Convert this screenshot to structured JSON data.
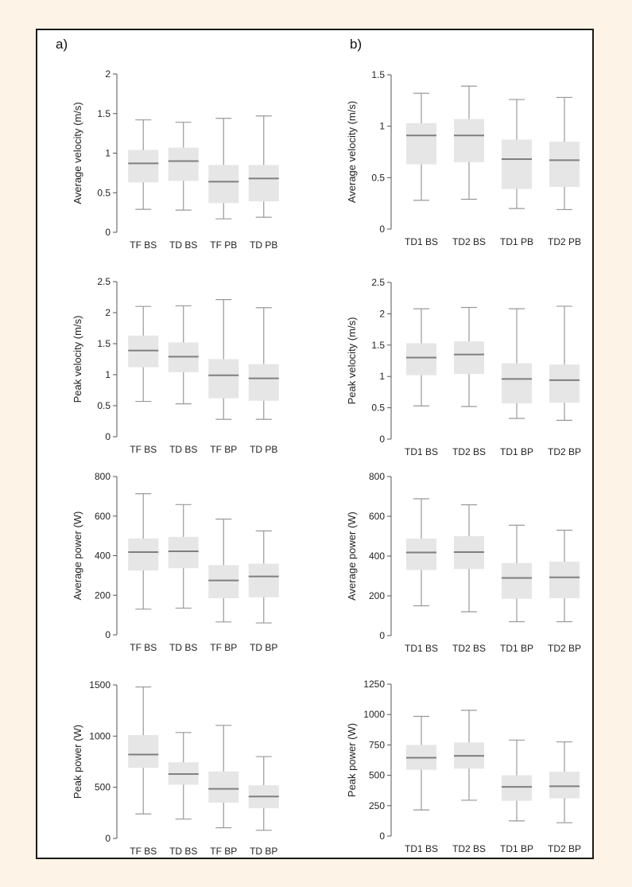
{
  "panel_labels": {
    "a": "a)",
    "b": "b)"
  },
  "colors": {
    "box": "#e6e6e6",
    "median": "#7f7f7f",
    "whisker": "#999999",
    "axis": "#555555",
    "page_bg": "#fdf3e6",
    "frame": "#1a1a1a"
  },
  "chart_data": [
    {
      "type": "box",
      "panel": "a",
      "row": 1,
      "title": "",
      "xlabel": "",
      "ylabel": "Average velocity (m/s)",
      "ylim": [
        0,
        2
      ],
      "yticks": [
        "0",
        "0.5",
        "1",
        "1.5",
        "2"
      ],
      "yticks_values": [
        0,
        0.5,
        1,
        1.5,
        2
      ],
      "categories": [
        "TF BS",
        "TD BS",
        "TF PB",
        "TD PB"
      ],
      "boxes": [
        {
          "min": 0.29,
          "q1": 0.63,
          "median": 0.87,
          "q3": 1.04,
          "max": 1.42
        },
        {
          "min": 0.28,
          "q1": 0.65,
          "median": 0.9,
          "q3": 1.07,
          "max": 1.39
        },
        {
          "min": 0.17,
          "q1": 0.37,
          "median": 0.64,
          "q3": 0.85,
          "max": 1.44
        },
        {
          "min": 0.19,
          "q1": 0.39,
          "median": 0.68,
          "q3": 0.85,
          "max": 1.47
        }
      ]
    },
    {
      "type": "box",
      "panel": "b",
      "row": 1,
      "title": "",
      "xlabel": "",
      "ylabel": "Average velocity (m/s)",
      "ylim": [
        0,
        1.5
      ],
      "yticks": [
        "0",
        "0.5",
        "1",
        "1.5"
      ],
      "yticks_values": [
        0,
        0.5,
        1,
        1.5
      ],
      "categories": [
        "TD1 BS",
        "TD2 BS",
        "TD1 PB",
        "TD2 PB"
      ],
      "boxes": [
        {
          "min": 0.28,
          "q1": 0.63,
          "median": 0.91,
          "q3": 1.03,
          "max": 1.32
        },
        {
          "min": 0.29,
          "q1": 0.65,
          "median": 0.91,
          "q3": 1.07,
          "max": 1.39
        },
        {
          "min": 0.2,
          "q1": 0.39,
          "median": 0.68,
          "q3": 0.87,
          "max": 1.26
        },
        {
          "min": 0.19,
          "q1": 0.41,
          "median": 0.67,
          "q3": 0.85,
          "max": 1.28
        }
      ]
    },
    {
      "type": "box",
      "panel": "a",
      "row": 2,
      "title": "",
      "xlabel": "",
      "ylabel": "Peak velocity (m/s)",
      "ylim": [
        0,
        2.5
      ],
      "yticks": [
        "0",
        "0.5",
        "1",
        "1.5",
        "2",
        "2.5"
      ],
      "yticks_values": [
        0,
        0.5,
        1,
        1.5,
        2,
        2.5
      ],
      "categories": [
        "TF BS",
        "TD BS",
        "TF BP",
        "TD PB"
      ],
      "boxes": [
        {
          "min": 0.57,
          "q1": 1.12,
          "median": 1.39,
          "q3": 1.63,
          "max": 2.1
        },
        {
          "min": 0.53,
          "q1": 1.04,
          "median": 1.29,
          "q3": 1.52,
          "max": 2.11
        },
        {
          "min": 0.28,
          "q1": 0.62,
          "median": 0.99,
          "q3": 1.25,
          "max": 2.21
        },
        {
          "min": 0.28,
          "q1": 0.58,
          "median": 0.94,
          "q3": 1.17,
          "max": 2.08
        }
      ]
    },
    {
      "type": "box",
      "panel": "b",
      "row": 2,
      "title": "",
      "xlabel": "",
      "ylabel": "Peak velocity (m/s)",
      "ylim": [
        0,
        2.5
      ],
      "yticks": [
        "0",
        "0.5",
        "1",
        "1.5",
        "2",
        "2.5"
      ],
      "yticks_values": [
        0,
        0.5,
        1,
        1.5,
        2,
        2.5
      ],
      "categories": [
        "TD1 BS",
        "TD2 BS",
        "TD1 BP",
        "TD2 BP"
      ],
      "boxes": [
        {
          "min": 0.53,
          "q1": 1.02,
          "median": 1.3,
          "q3": 1.53,
          "max": 2.08
        },
        {
          "min": 0.52,
          "q1": 1.04,
          "median": 1.35,
          "q3": 1.56,
          "max": 2.1
        },
        {
          "min": 0.33,
          "q1": 0.57,
          "median": 0.96,
          "q3": 1.21,
          "max": 2.08
        },
        {
          "min": 0.3,
          "q1": 0.58,
          "median": 0.94,
          "q3": 1.19,
          "max": 2.12
        }
      ]
    },
    {
      "type": "box",
      "panel": "a",
      "row": 3,
      "title": "",
      "xlabel": "",
      "ylabel": "Average power (W)",
      "ylim": [
        0,
        800
      ],
      "yticks": [
        "0",
        "200",
        "400",
        "600",
        "800"
      ],
      "yticks_values": [
        0,
        200,
        400,
        600,
        800
      ],
      "categories": [
        "TF BS",
        "TD BS",
        "TF BP",
        "TD BP"
      ],
      "boxes": [
        {
          "min": 130,
          "q1": 325,
          "median": 418,
          "q3": 487,
          "max": 713
        },
        {
          "min": 135,
          "q1": 337,
          "median": 422,
          "q3": 495,
          "max": 658
        },
        {
          "min": 65,
          "q1": 185,
          "median": 275,
          "q3": 352,
          "max": 585
        },
        {
          "min": 60,
          "q1": 190,
          "median": 295,
          "q3": 360,
          "max": 525
        }
      ]
    },
    {
      "type": "box",
      "panel": "b",
      "row": 3,
      "title": "",
      "xlabel": "",
      "ylabel": "Average power (W)",
      "ylim": [
        0,
        800
      ],
      "yticks": [
        "0",
        "200",
        "400",
        "600",
        "800"
      ],
      "yticks_values": [
        0,
        200,
        400,
        600,
        800
      ],
      "categories": [
        "TD1 BS",
        "TD2 BS",
        "TD1 BP",
        "TD2 BP"
      ],
      "boxes": [
        {
          "min": 150,
          "q1": 330,
          "median": 418,
          "q3": 488,
          "max": 688
        },
        {
          "min": 120,
          "q1": 335,
          "median": 420,
          "q3": 500,
          "max": 658
        },
        {
          "min": 70,
          "q1": 185,
          "median": 290,
          "q3": 365,
          "max": 555
        },
        {
          "min": 70,
          "q1": 188,
          "median": 293,
          "q3": 372,
          "max": 530
        }
      ]
    },
    {
      "type": "box",
      "panel": "a",
      "row": 4,
      "title": "",
      "xlabel": "",
      "ylabel": "Peak power (W)",
      "ylim": [
        0,
        1500
      ],
      "yticks": [
        "0",
        "500",
        "1000",
        "1500"
      ],
      "yticks_values": [
        0,
        500,
        1000,
        1500
      ],
      "categories": [
        "TF BS",
        "TD BS",
        "TF BP",
        "TD BP"
      ],
      "boxes": [
        {
          "min": 240,
          "q1": 690,
          "median": 820,
          "q3": 1010,
          "max": 1480
        },
        {
          "min": 190,
          "q1": 525,
          "median": 630,
          "q3": 745,
          "max": 1035
        },
        {
          "min": 105,
          "q1": 350,
          "median": 485,
          "q3": 655,
          "max": 1105
        },
        {
          "min": 80,
          "q1": 295,
          "median": 410,
          "q3": 520,
          "max": 800
        }
      ]
    },
    {
      "type": "box",
      "panel": "b",
      "row": 4,
      "title": "",
      "xlabel": "",
      "ylabel": "Peak power (W)",
      "ylim": [
        0,
        1250
      ],
      "yticks": [
        "0",
        "250",
        "500",
        "750",
        "1000",
        "1250"
      ],
      "yticks_values": [
        0,
        250,
        500,
        750,
        1000,
        1250
      ],
      "categories": [
        "TD1 BS",
        "TD2 BS",
        "TD1 BP",
        "TD2 BP"
      ],
      "boxes": [
        {
          "min": 215,
          "q1": 545,
          "median": 645,
          "q3": 750,
          "max": 985
        },
        {
          "min": 295,
          "q1": 555,
          "median": 660,
          "q3": 770,
          "max": 1035
        },
        {
          "min": 125,
          "q1": 290,
          "median": 405,
          "q3": 500,
          "max": 790
        },
        {
          "min": 110,
          "q1": 310,
          "median": 410,
          "q3": 530,
          "max": 775
        }
      ]
    }
  ]
}
